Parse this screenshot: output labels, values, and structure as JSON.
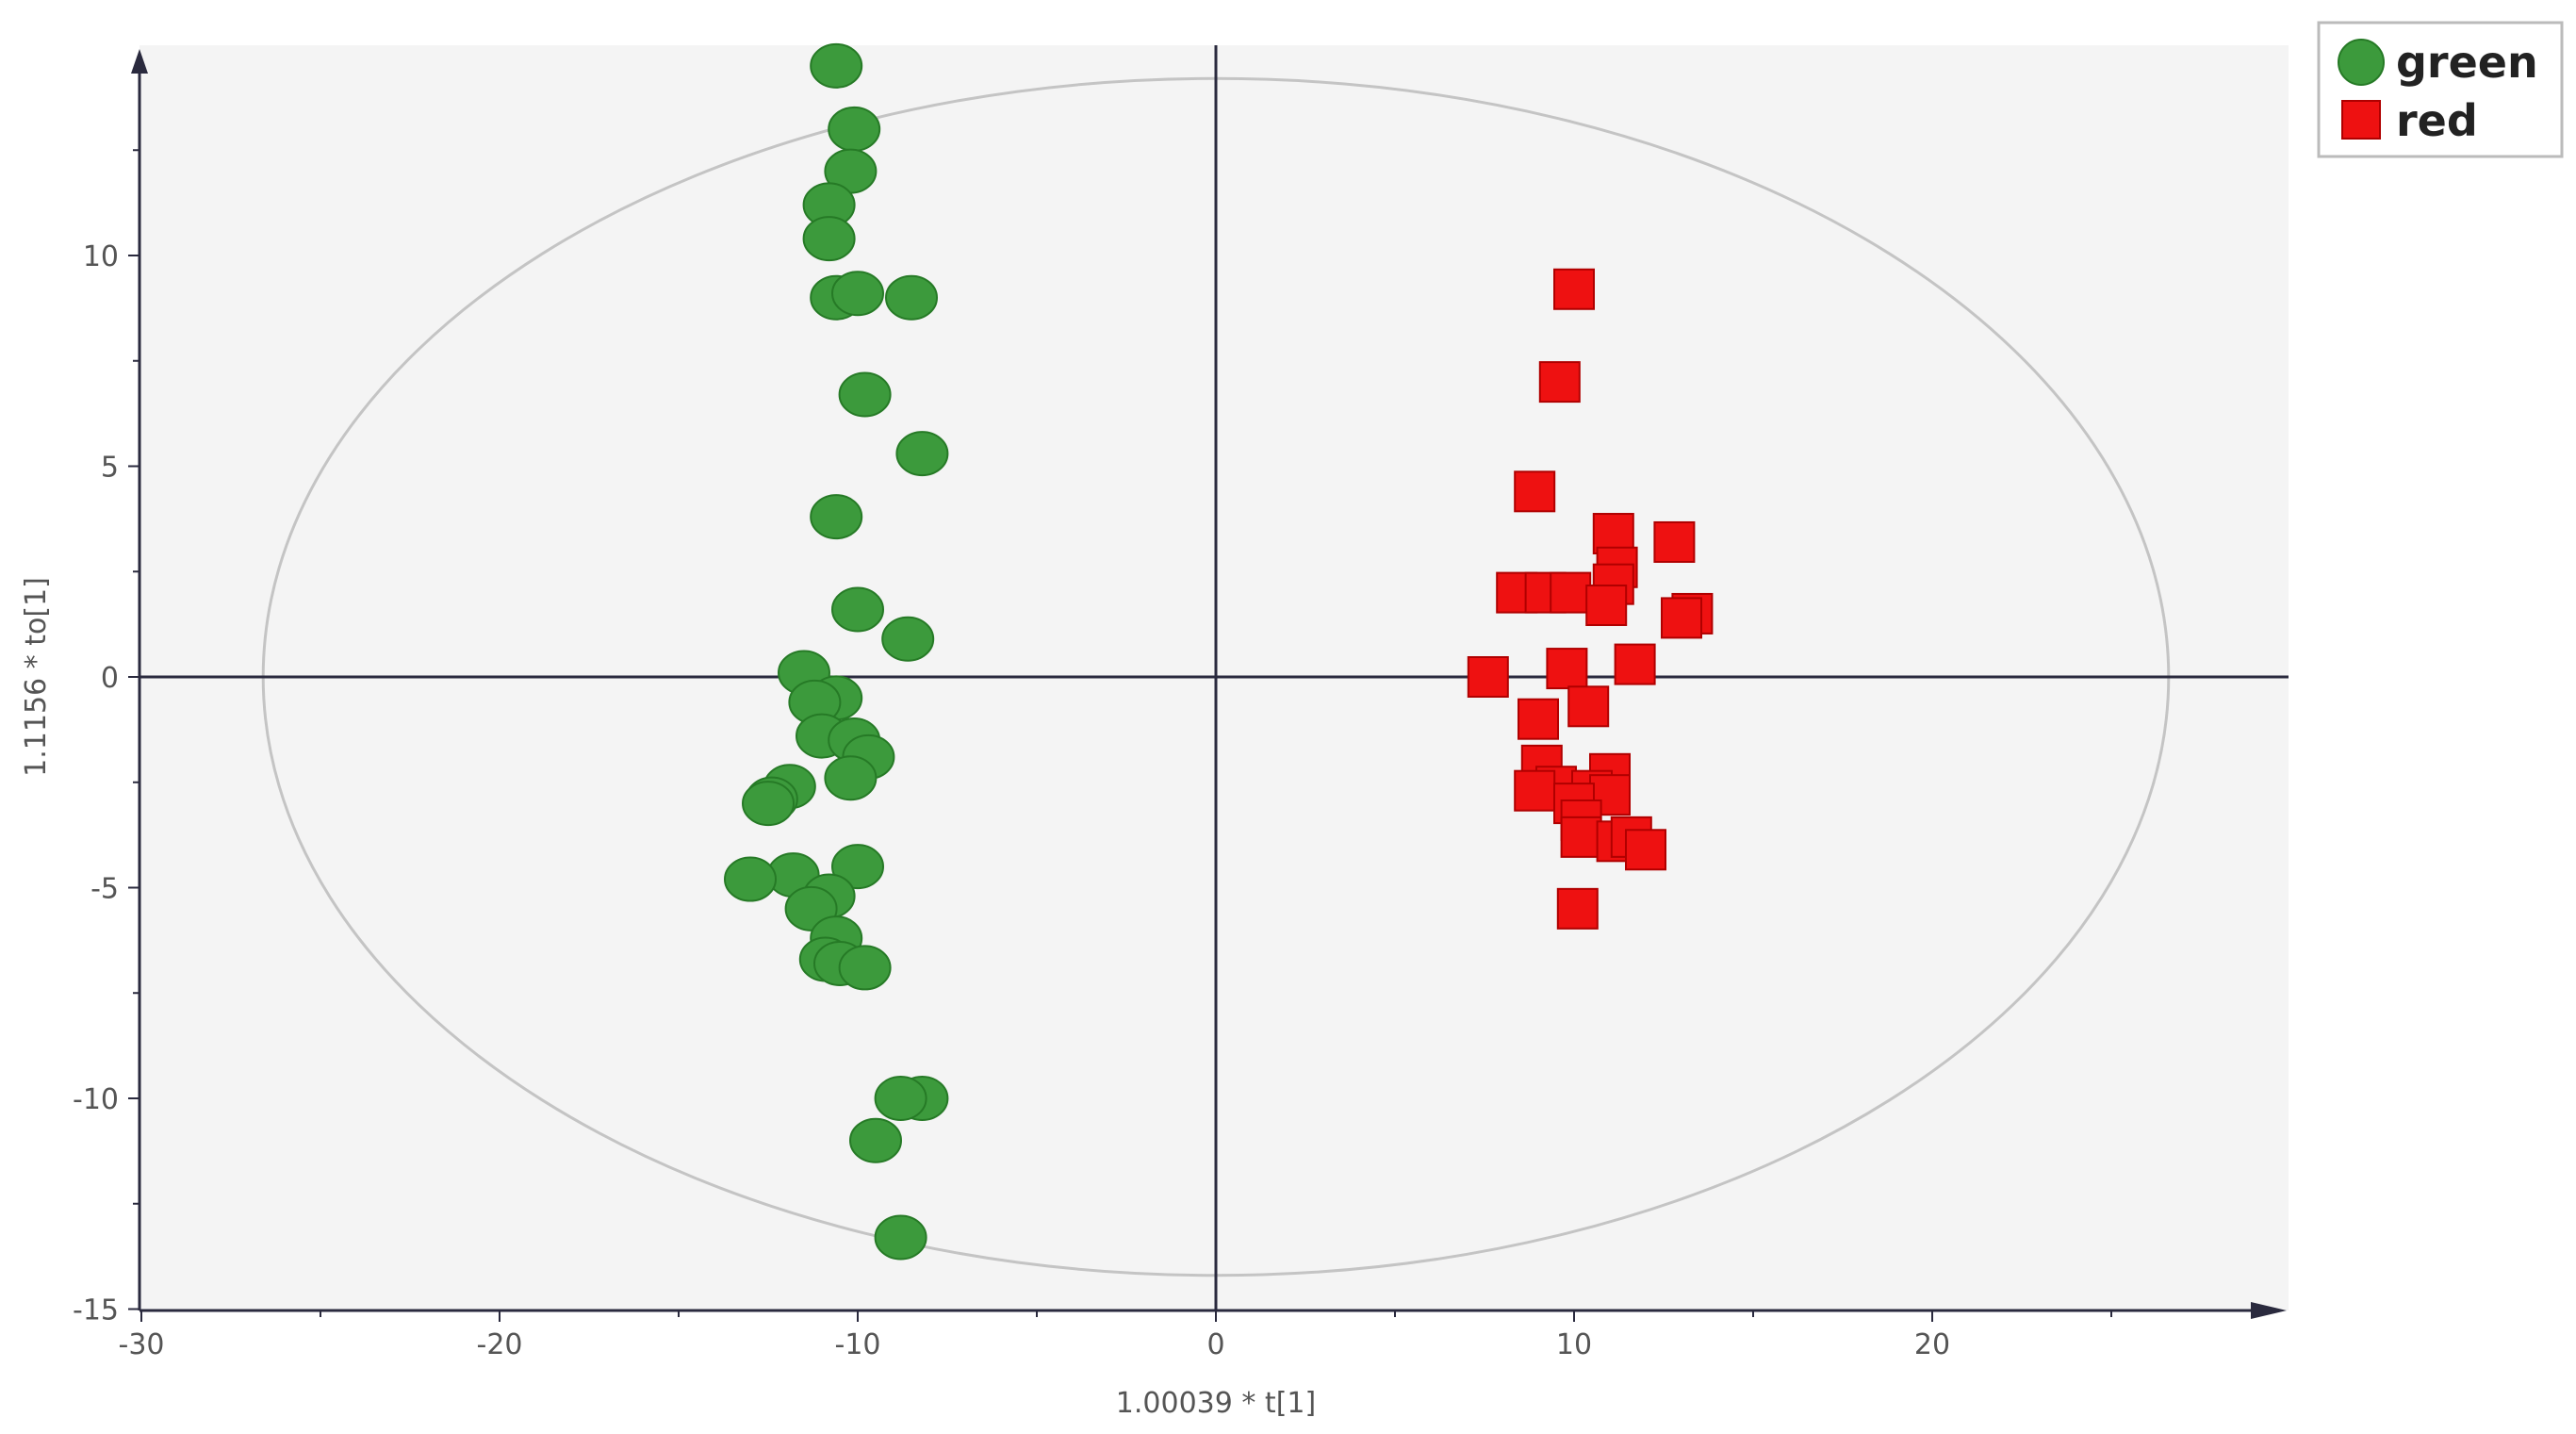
{
  "chart_data": {
    "type": "scatter",
    "xlabel": "1.00039 * t[1]",
    "ylabel": "1.1156 * to[1]",
    "xlim": [
      -30,
      30
    ],
    "ylim": [
      -15,
      15
    ],
    "x_ticks": [
      -30,
      -20,
      -10,
      0,
      10,
      20
    ],
    "y_ticks": [
      -15,
      -10,
      -5,
      0,
      5,
      10
    ],
    "x_tick_labels": [
      "-30",
      "-20",
      "-10",
      "0",
      "10",
      "20"
    ],
    "y_tick_labels": [
      "-15",
      "-10",
      "-5",
      "0",
      "5",
      "10"
    ],
    "legend_position": "top-right",
    "grid": false,
    "ellipse": {
      "x_radius": 26.6,
      "y_radius": 14.2
    },
    "series": [
      {
        "name": "green",
        "marker": "circle",
        "color": "#3c9a3c",
        "points": [
          [
            -10.6,
            14.5
          ],
          [
            -10.1,
            13.0
          ],
          [
            -10.2,
            12.0
          ],
          [
            -10.8,
            11.2
          ],
          [
            -10.8,
            10.4
          ],
          [
            -10.6,
            9.0
          ],
          [
            -10.0,
            9.1
          ],
          [
            -8.5,
            9.0
          ],
          [
            -9.8,
            6.7
          ],
          [
            -8.2,
            5.3
          ],
          [
            -10.6,
            3.8
          ],
          [
            -10.0,
            1.6
          ],
          [
            -8.6,
            0.9
          ],
          [
            -11.5,
            0.1
          ],
          [
            -10.6,
            -0.5
          ],
          [
            -11.2,
            -0.6
          ],
          [
            -11.0,
            -1.4
          ],
          [
            -10.1,
            -1.5
          ],
          [
            -9.7,
            -1.9
          ],
          [
            -10.2,
            -2.4
          ],
          [
            -11.9,
            -2.6
          ],
          [
            -12.4,
            -2.9
          ],
          [
            -12.5,
            -3.0
          ],
          [
            -10.0,
            -4.5
          ],
          [
            -11.8,
            -4.7
          ],
          [
            -13.0,
            -4.8
          ],
          [
            -10.8,
            -5.2
          ],
          [
            -11.3,
            -5.5
          ],
          [
            -10.6,
            -6.2
          ],
          [
            -10.9,
            -6.7
          ],
          [
            -10.5,
            -6.8
          ],
          [
            -9.8,
            -6.9
          ],
          [
            -8.2,
            -10.0
          ],
          [
            -8.8,
            -10.0
          ],
          [
            -9.5,
            -11.0
          ],
          [
            -8.8,
            -13.3
          ]
        ]
      },
      {
        "name": "red",
        "marker": "square",
        "color": "#ee1111",
        "points": [
          [
            10.0,
            9.2
          ],
          [
            9.6,
            7.0
          ],
          [
            8.9,
            4.4
          ],
          [
            11.1,
            3.4
          ],
          [
            12.8,
            3.2
          ],
          [
            11.2,
            2.6
          ],
          [
            11.1,
            2.2
          ],
          [
            8.4,
            2.0
          ],
          [
            9.2,
            2.0
          ],
          [
            9.9,
            2.0
          ],
          [
            10.9,
            1.7
          ],
          [
            13.3,
            1.5
          ],
          [
            13.0,
            1.4
          ],
          [
            11.7,
            0.3
          ],
          [
            9.8,
            0.2
          ],
          [
            7.6,
            0.0
          ],
          [
            10.4,
            -0.7
          ],
          [
            9.0,
            -1.0
          ],
          [
            9.1,
            -2.1
          ],
          [
            11.0,
            -2.3
          ],
          [
            9.5,
            -2.6
          ],
          [
            8.9,
            -2.7
          ],
          [
            10.5,
            -2.7
          ],
          [
            11.0,
            -2.8
          ],
          [
            10.0,
            -3.0
          ],
          [
            10.2,
            -3.4
          ],
          [
            10.2,
            -3.8
          ],
          [
            11.2,
            -3.9
          ],
          [
            11.6,
            -3.8
          ],
          [
            12.0,
            -4.1
          ],
          [
            10.1,
            -5.5
          ]
        ]
      }
    ]
  },
  "colors": {
    "plot_background": "#f4f4f4",
    "axis": "#2a2a3e",
    "ellipse": "#c4c4c4",
    "marker_outline_green": "#267a26",
    "marker_outline_red": "#b00000"
  }
}
